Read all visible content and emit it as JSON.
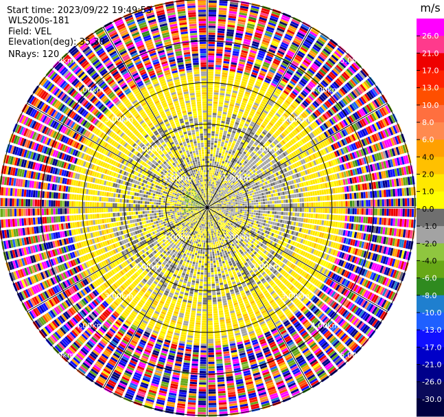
{
  "chart_data": {
    "type": "heatmap",
    "subtype": "ppi-radar",
    "header": {
      "start_time": "Start time: 2023/09/22 19:49:53",
      "instrument": "WLS200s-181",
      "field": "Field: VEL",
      "elevation": "Elevation(deg): 35.30",
      "nrays": "NRays: 120"
    },
    "n_rays": 120,
    "max_range_km": 5.0,
    "range_rings_km": [
      1.0,
      2.0,
      3.0,
      4.0,
      5.0
    ],
    "ring_labels": [
      "1.00km",
      "2.00km",
      "3.00km",
      "4.00km",
      "5.00km"
    ],
    "colorbar": {
      "title": "m/s",
      "vmin": -30.0,
      "vmax": 30.0,
      "ticks": [
        "26.0",
        "21.0",
        "17.0",
        "13.0",
        "10.0",
        "8.0",
        "6.0",
        "4.0",
        "2.0",
        "1.0",
        "0.0",
        "-1.0",
        "-2.0",
        "-4.0",
        "-6.0",
        "-8.0",
        "-10.0",
        "-13.0",
        "-17.0",
        "-21.0",
        "-26.0",
        "-30.0"
      ],
      "colors": [
        "#ff00ff",
        "#ff3a8c",
        "#ee0000",
        "#ff2200",
        "#ff4f00",
        "#ff6f3f",
        "#ff8a4f",
        "#ffa000",
        "#ffc000",
        "#ffe800",
        "#ffff00",
        "#6f6f6f",
        "#a3a3a3",
        "#8fc63f",
        "#67a817",
        "#2f8a1f",
        "#1f7fcf",
        "#1f60ff",
        "#1010ff",
        "#0000c8",
        "#00008a",
        "#0a0a5a",
        "#000040"
      ]
    },
    "range_bands": [
      {
        "range_km": [
          0.0,
          2.3
        ],
        "pattern": "weak-mixed",
        "dominant_values_ms": [
          -2.0,
          0.0,
          1.0,
          -1.0
        ]
      },
      {
        "range_km": [
          2.3,
          3.3
        ],
        "pattern": "weak-ring",
        "dominant_values_ms": [
          1.0,
          -2.0,
          0.0,
          2.0
        ]
      },
      {
        "range_km": [
          3.3,
          5.0
        ],
        "pattern": "noise",
        "dominant_values_ms": [
          -26.0,
          26.0,
          -17.0,
          17.0,
          4.0,
          -6.0
        ]
      }
    ]
  }
}
